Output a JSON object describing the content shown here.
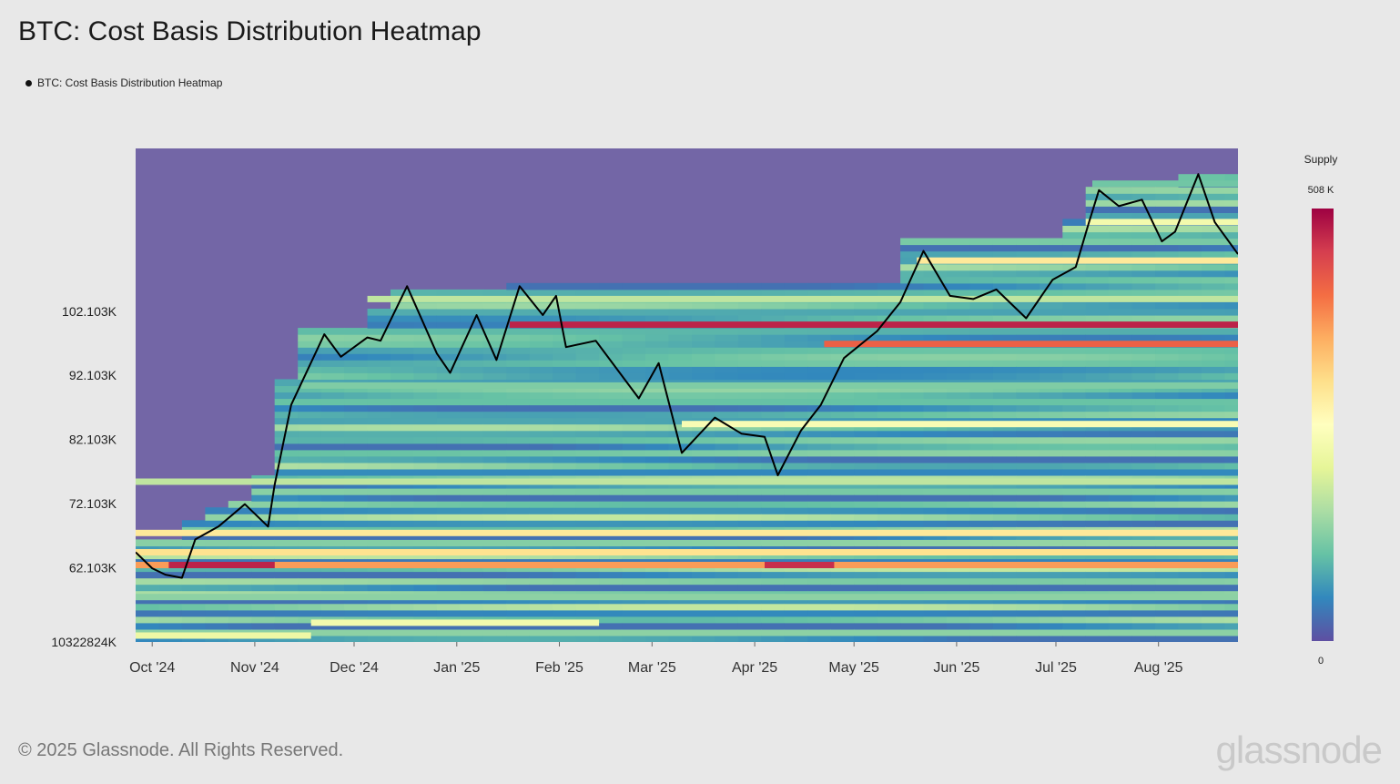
{
  "title": "BTC: Cost Basis Distribution Heatmap",
  "legend_label": "BTC: Cost Basis Distribution Heatmap",
  "footer": "© 2025 Glassnode. All Rights Reserved.",
  "brand": "glassnode",
  "colorbar": {
    "title": "Supply",
    "max_label": "508 K",
    "min_label": "0"
  },
  "colors": {
    "background": "#e8e8e8",
    "empty_region": "#7366a6",
    "price_line": "#000000"
  },
  "chart_data": {
    "type": "heatmap",
    "title": "BTC: Cost Basis Distribution Heatmap",
    "xlabel": "",
    "ylabel": "",
    "x_tick_labels": [
      "Oct '24",
      "Nov '24",
      "Dec '24",
      "Jan '25",
      "Feb '25",
      "Mar '25",
      "Apr '25",
      "May '25",
      "Jun '25",
      "Jul '25",
      "Aug '25"
    ],
    "y_tick_labels": [
      "102.103K",
      "92.103K",
      "82.103K",
      "72.103K",
      "62.103K",
      "10322824K"
    ],
    "xlim": [
      "2024-09-26",
      "2025-08-25"
    ],
    "ylim": [
      50500,
      127500
    ],
    "colorscale": "Spectral (reversed): purple = 0, red = 508 K supply",
    "colorbar_range": [
      0,
      508000
    ],
    "price_series": {
      "name": "BTC price",
      "x": [
        "2024-09-26",
        "2024-10-01",
        "2024-10-05",
        "2024-10-10",
        "2024-10-14",
        "2024-10-21",
        "2024-10-29",
        "2024-11-05",
        "2024-11-07",
        "2024-11-12",
        "2024-11-22",
        "2024-11-27",
        "2024-12-05",
        "2024-12-09",
        "2024-12-17",
        "2024-12-26",
        "2024-12-30",
        "2025-01-07",
        "2025-01-13",
        "2025-01-20",
        "2025-01-27",
        "2025-01-31",
        "2025-02-03",
        "2025-02-12",
        "2025-02-25",
        "2025-03-03",
        "2025-03-10",
        "2025-03-20",
        "2025-03-28",
        "2025-04-04",
        "2025-04-08",
        "2025-04-15",
        "2025-04-21",
        "2025-04-28",
        "2025-05-08",
        "2025-05-15",
        "2025-05-22",
        "2025-05-30",
        "2025-06-06",
        "2025-06-13",
        "2025-06-22",
        "2025-06-30",
        "2025-07-07",
        "2025-07-11",
        "2025-07-14",
        "2025-07-20",
        "2025-07-27",
        "2025-08-02",
        "2025-08-06",
        "2025-08-13",
        "2025-08-18",
        "2025-08-25"
      ],
      "y": [
        64500,
        62000,
        61000,
        60500,
        66500,
        68500,
        72000,
        68500,
        75000,
        87500,
        98500,
        95000,
        98000,
        97500,
        106000,
        95500,
        92500,
        101500,
        94500,
        106000,
        101500,
        104500,
        96500,
        97500,
        88500,
        94000,
        80000,
        85500,
        83000,
        82500,
        76500,
        83500,
        87500,
        94800,
        99000,
        103500,
        111500,
        104500,
        104000,
        105500,
        101000,
        107000,
        109000,
        116000,
        121000,
        118500,
        119500,
        113000,
        114500,
        123500,
        116000,
        111000
      ]
    },
    "supply_bands": [
      {
        "price": 122000,
        "from": "2025-07-12",
        "to": "2025-08-25",
        "supply": 110000
      },
      {
        "price": 116000,
        "from": "2025-07-10",
        "to": "2025-08-25",
        "supply": 230000
      },
      {
        "price": 110000,
        "from": "2025-05-20",
        "to": "2025-08-25",
        "supply": 290000
      },
      {
        "price": 104000,
        "from": "2024-12-05",
        "to": "2025-08-25",
        "supply": 170000
      },
      {
        "price": 100000,
        "from": "2025-01-17",
        "to": "2025-08-25",
        "supply": 480000
      },
      {
        "price": 97000,
        "from": "2025-04-22",
        "to": "2025-08-25",
        "supply": 420000
      },
      {
        "price": 90500,
        "from": "2024-11-15",
        "to": "2025-08-25",
        "supply": 120000
      },
      {
        "price": 84500,
        "from": "2025-03-10",
        "to": "2025-08-25",
        "supply": 240000
      },
      {
        "price": 75500,
        "from": "2024-09-26",
        "to": "2025-08-25",
        "supply": 170000
      },
      {
        "price": 67500,
        "from": "2024-09-26",
        "to": "2025-08-25",
        "supply": 290000
      },
      {
        "price": 64500,
        "from": "2024-09-26",
        "to": "2025-08-25",
        "supply": 300000
      },
      {
        "price": 62500,
        "from": "2024-09-26",
        "to": "2025-08-25",
        "supply": 370000
      },
      {
        "price": 62500,
        "from": "2024-10-06",
        "to": "2024-11-07",
        "supply": 480000
      },
      {
        "price": 62500,
        "from": "2025-04-04",
        "to": "2025-04-25",
        "supply": 470000
      },
      {
        "price": 57500,
        "from": "2024-09-26",
        "to": "2025-08-25",
        "supply": 130000
      },
      {
        "price": 53500,
        "from": "2024-11-18",
        "to": "2025-02-13",
        "supply": 230000
      },
      {
        "price": 51500,
        "from": "2024-09-26",
        "to": "2024-11-18",
        "supply": 220000
      }
    ]
  }
}
